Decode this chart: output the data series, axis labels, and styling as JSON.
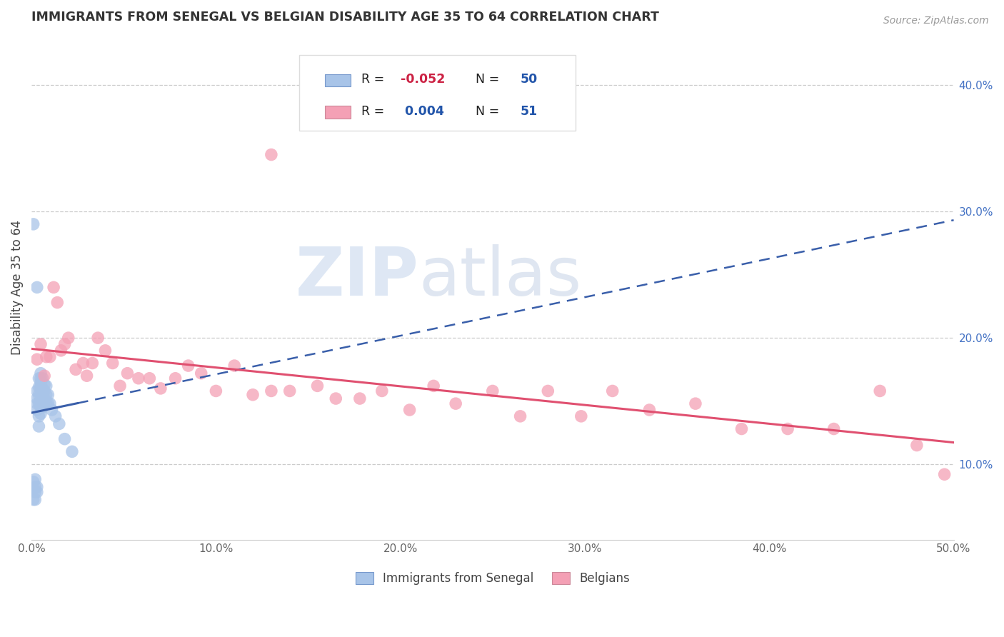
{
  "title": "IMMIGRANTS FROM SENEGAL VS BELGIAN DISABILITY AGE 35 TO 64 CORRELATION CHART",
  "source": "Source: ZipAtlas.com",
  "ylabel": "Disability Age 35 to 64",
  "right_yticks": [
    "10.0%",
    "20.0%",
    "30.0%",
    "40.0%"
  ],
  "right_ytick_vals": [
    0.1,
    0.2,
    0.3,
    0.4
  ],
  "xlim": [
    0.0,
    0.5
  ],
  "ylim": [
    0.04,
    0.44
  ],
  "color_blue": "#a8c4e8",
  "color_pink": "#f4a0b5",
  "trendline_blue_color": "#3a5faa",
  "trendline_pink_color": "#e05070",
  "watermark_zip": "ZIP",
  "watermark_atlas": "atlas",
  "legend_label1": "Immigrants from Senegal",
  "legend_label2": "Belgians",
  "blue_x": [
    0.001,
    0.001,
    0.001,
    0.002,
    0.002,
    0.002,
    0.002,
    0.003,
    0.003,
    0.003,
    0.003,
    0.003,
    0.003,
    0.004,
    0.004,
    0.004,
    0.004,
    0.004,
    0.004,
    0.005,
    0.005,
    0.005,
    0.005,
    0.005,
    0.005,
    0.005,
    0.005,
    0.005,
    0.006,
    0.006,
    0.006,
    0.006,
    0.006,
    0.007,
    0.007,
    0.007,
    0.007,
    0.008,
    0.008,
    0.008,
    0.009,
    0.009,
    0.01,
    0.011,
    0.013,
    0.015,
    0.018,
    0.022,
    0.001,
    0.003
  ],
  "blue_y": [
    0.072,
    0.08,
    0.086,
    0.072,
    0.078,
    0.082,
    0.088,
    0.078,
    0.082,
    0.143,
    0.148,
    0.152,
    0.158,
    0.13,
    0.138,
    0.148,
    0.155,
    0.161,
    0.168,
    0.14,
    0.145,
    0.15,
    0.155,
    0.16,
    0.162,
    0.165,
    0.168,
    0.172,
    0.145,
    0.15,
    0.155,
    0.16,
    0.168,
    0.148,
    0.152,
    0.158,
    0.163,
    0.148,
    0.155,
    0.162,
    0.148,
    0.155,
    0.148,
    0.143,
    0.138,
    0.132,
    0.12,
    0.11,
    0.29,
    0.24
  ],
  "pink_x": [
    0.003,
    0.005,
    0.007,
    0.008,
    0.01,
    0.012,
    0.014,
    0.016,
    0.018,
    0.02,
    0.024,
    0.028,
    0.03,
    0.033,
    0.036,
    0.04,
    0.044,
    0.048,
    0.052,
    0.058,
    0.064,
    0.07,
    0.078,
    0.085,
    0.092,
    0.1,
    0.11,
    0.12,
    0.13,
    0.14,
    0.155,
    0.165,
    0.178,
    0.19,
    0.205,
    0.218,
    0.23,
    0.25,
    0.265,
    0.28,
    0.298,
    0.315,
    0.335,
    0.36,
    0.385,
    0.41,
    0.435,
    0.46,
    0.48,
    0.495,
    0.13
  ],
  "pink_y": [
    0.183,
    0.195,
    0.17,
    0.185,
    0.185,
    0.24,
    0.228,
    0.19,
    0.195,
    0.2,
    0.175,
    0.18,
    0.17,
    0.18,
    0.2,
    0.19,
    0.18,
    0.162,
    0.172,
    0.168,
    0.168,
    0.16,
    0.168,
    0.178,
    0.172,
    0.158,
    0.178,
    0.155,
    0.158,
    0.158,
    0.162,
    0.152,
    0.152,
    0.158,
    0.143,
    0.162,
    0.148,
    0.158,
    0.138,
    0.158,
    0.138,
    0.158,
    0.143,
    0.148,
    0.128,
    0.128,
    0.128,
    0.158,
    0.115,
    0.092,
    0.345
  ]
}
